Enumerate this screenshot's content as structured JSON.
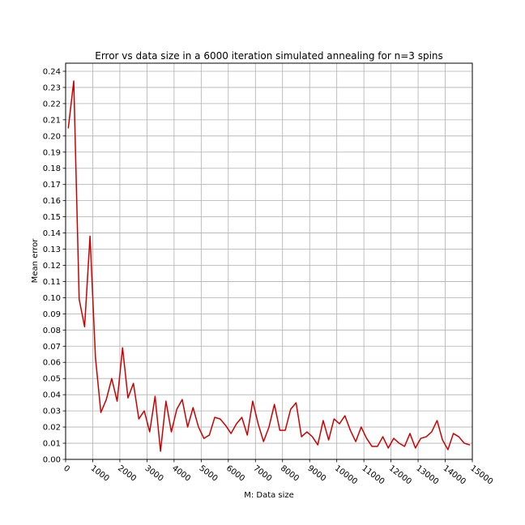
{
  "chart_data": {
    "type": "line",
    "title": "Error vs data size in a 6000 iteration simulated annealing for n=3 spins",
    "xlabel": "M: Data size",
    "ylabel": "Mean error",
    "xlim": [
      0,
      15000
    ],
    "ylim": [
      0,
      0.245
    ],
    "x_ticks": [
      0,
      1000,
      2000,
      3000,
      4000,
      5000,
      6000,
      7000,
      8000,
      9000,
      10000,
      11000,
      12000,
      13000,
      14000,
      15000
    ],
    "x_tick_labels": [
      "0",
      "1000",
      "2000",
      "3000",
      "4000",
      "5000",
      "6000",
      "7000",
      "8000",
      "9000",
      "10000",
      "11000",
      "12000",
      "13000",
      "14000",
      "15000"
    ],
    "y_ticks": [
      0,
      0.01,
      0.02,
      0.03,
      0.04,
      0.05,
      0.06,
      0.07,
      0.08,
      0.09,
      0.1,
      0.11,
      0.12,
      0.13,
      0.14,
      0.15,
      0.16,
      0.17,
      0.18,
      0.19,
      0.2,
      0.21,
      0.22,
      0.23,
      0.24
    ],
    "y_tick_labels": [
      "0.00",
      "0.01",
      "0.02",
      "0.03",
      "0.04",
      "0.05",
      "0.06",
      "0.07",
      "0.08",
      "0.09",
      "0.10",
      "0.11",
      "0.12",
      "0.13",
      "0.14",
      "0.15",
      "0.16",
      "0.17",
      "0.18",
      "0.19",
      "0.20",
      "0.21",
      "0.22",
      "0.23",
      "0.24"
    ],
    "grid": true,
    "series": [
      {
        "color": "#cc0000",
        "x": [
          100,
          300,
          500,
          700,
          900,
          1100,
          1300,
          1500,
          1700,
          1900,
          2100,
          2300,
          2500,
          2700,
          2900,
          3100,
          3300,
          3500,
          3700,
          3900,
          4100,
          4300,
          4500,
          4700,
          4900,
          5100,
          5300,
          5500,
          5700,
          5900,
          6100,
          6300,
          6500,
          6700,
          6900,
          7100,
          7300,
          7500,
          7700,
          7900,
          8100,
          8300,
          8500,
          8700,
          8900,
          9100,
          9300,
          9500,
          9700,
          9900,
          10100,
          10300,
          10500,
          10700,
          10900,
          11100,
          11300,
          11500,
          11700,
          11900,
          12100,
          12300,
          12500,
          12700,
          12900,
          13100,
          13300,
          13500,
          13700,
          13900,
          14100,
          14300,
          14500,
          14700,
          14900
        ],
        "y": [
          0.205,
          0.234,
          0.099,
          0.082,
          0.138,
          0.063,
          0.029,
          0.037,
          0.05,
          0.036,
          0.069,
          0.038,
          0.047,
          0.025,
          0.03,
          0.017,
          0.039,
          0.005,
          0.036,
          0.017,
          0.031,
          0.037,
          0.02,
          0.032,
          0.02,
          0.013,
          0.015,
          0.026,
          0.025,
          0.021,
          0.016,
          0.022,
          0.026,
          0.015,
          0.036,
          0.022,
          0.011,
          0.02,
          0.034,
          0.018,
          0.018,
          0.031,
          0.035,
          0.014,
          0.017,
          0.014,
          0.009,
          0.024,
          0.012,
          0.025,
          0.022,
          0.027,
          0.018,
          0.011,
          0.02,
          0.013,
          0.008,
          0.008,
          0.014,
          0.007,
          0.013,
          0.01,
          0.008,
          0.016,
          0.007,
          0.013,
          0.014,
          0.017,
          0.024,
          0.012,
          0.006,
          0.016,
          0.014,
          0.01,
          0.009
        ]
      }
    ]
  }
}
